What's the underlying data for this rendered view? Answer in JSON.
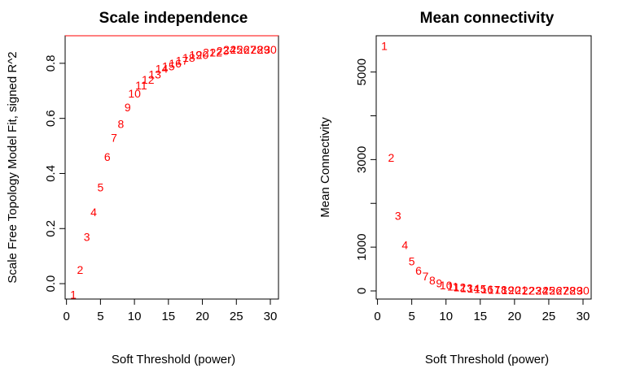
{
  "chart_data": [
    {
      "type": "scatter",
      "title": "Scale independence",
      "xlabel": "Soft Threshold (power)",
      "ylabel": "Scale Free Topology Model Fit, signed R^2",
      "xlim": [
        1,
        30
      ],
      "ylim": [
        -0.05,
        0.9
      ],
      "xticks": [
        "0",
        "5",
        "10",
        "15",
        "20",
        "25",
        "30"
      ],
      "xtick_values": [
        0,
        5,
        10,
        15,
        20,
        25,
        30
      ],
      "yticks": [
        "0.0",
        "0.2",
        "0.4",
        "0.6",
        "0.8"
      ],
      "ytick_values": [
        0,
        0.2,
        0.4,
        0.6,
        0.8
      ],
      "hline": 0.9,
      "hline_color": "#ff0000",
      "marker_color": "#ff0000",
      "grid": false,
      "x": [
        1,
        2,
        3,
        4,
        5,
        6,
        7,
        8,
        9,
        10,
        11,
        12,
        13,
        14,
        15,
        16,
        17,
        18,
        19,
        20,
        21,
        22,
        23,
        24,
        25,
        26,
        27,
        28,
        29,
        30
      ],
      "labels": [
        "1",
        "2",
        "3",
        "4",
        "5",
        "6",
        "7",
        "8",
        "9",
        "10",
        "11",
        "12",
        "13",
        "14",
        "15",
        "16",
        "17",
        "18",
        "19",
        "20",
        "21",
        "22",
        "23",
        "24",
        "25",
        "26",
        "27",
        "28",
        "29",
        "30"
      ],
      "y": [
        -0.04,
        0.05,
        0.17,
        0.26,
        0.35,
        0.46,
        0.53,
        0.58,
        0.64,
        0.69,
        0.72,
        0.74,
        0.76,
        0.78,
        0.79,
        0.8,
        0.81,
        0.82,
        0.83,
        0.83,
        0.84,
        0.84,
        0.845,
        0.85,
        0.85,
        0.85,
        0.85,
        0.85,
        0.85,
        0.85
      ]
    },
    {
      "type": "scatter",
      "title": "Mean connectivity",
      "xlabel": "Soft Threshold (power)",
      "ylabel": "Mean Connectivity",
      "xlim": [
        1,
        30
      ],
      "ylim": [
        0,
        5680
      ],
      "xticks": [
        "0",
        "5",
        "10",
        "15",
        "20",
        "25",
        "30"
      ],
      "xtick_values": [
        0,
        5,
        10,
        15,
        20,
        25,
        30
      ],
      "yticks": [
        "0",
        "1000",
        "3000",
        "5000"
      ],
      "ytick_values": [
        0,
        1000,
        3000,
        5000
      ],
      "minor_ytick_values": [
        2000,
        4000
      ],
      "marker_color": "#ff0000",
      "grid": false,
      "x": [
        1,
        2,
        3,
        4,
        5,
        6,
        7,
        8,
        9,
        10,
        11,
        12,
        13,
        14,
        15,
        16,
        17,
        18,
        19,
        20,
        21,
        22,
        23,
        24,
        25,
        26,
        27,
        28,
        29,
        30
      ],
      "labels": [
        "1",
        "2",
        "3",
        "4",
        "5",
        "6",
        "7",
        "8",
        "9",
        "10",
        "11",
        "12",
        "13",
        "14",
        "15",
        "16",
        "17",
        "18",
        "19",
        "20",
        "21",
        "22",
        "23",
        "24",
        "25",
        "26",
        "27",
        "28",
        "29",
        "30"
      ],
      "y": [
        5600,
        3040,
        1720,
        1050,
        680,
        460,
        330,
        240,
        175,
        130,
        100,
        80,
        65,
        52,
        42,
        35,
        29,
        24,
        20,
        17,
        15,
        13,
        11,
        10,
        9,
        8,
        7,
        6,
        5,
        5
      ]
    }
  ]
}
